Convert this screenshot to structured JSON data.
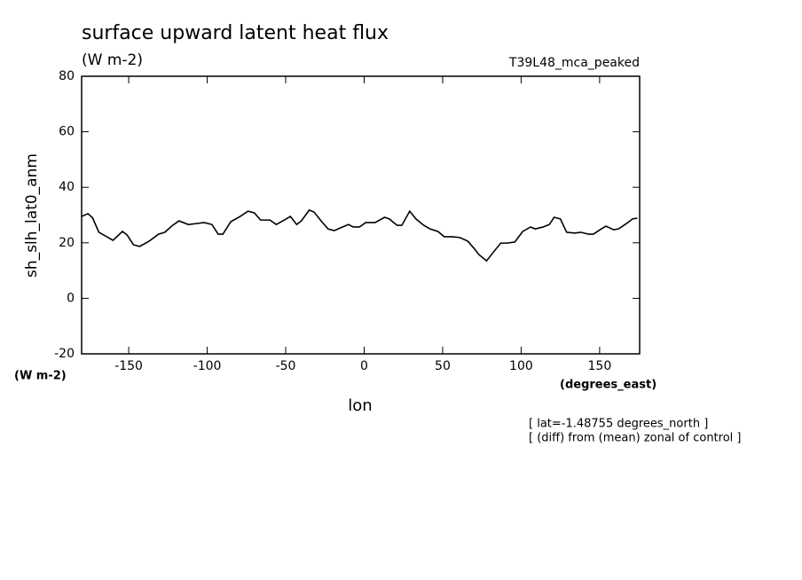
{
  "chart_data": {
    "type": "line",
    "title": "surface upward latent heat flux",
    "subtitle": "(W m-2)",
    "dataset": "T39L48_mca_peaked",
    "y_label": "sh_slh_lat0_anm",
    "y_units": "(W m-2)",
    "x_label": "lon",
    "x_units": "(degrees_east)",
    "notes": [
      "[ lat=-1.48755 degrees_north ]",
      "[ (diff) from (mean) zonal of control ]"
    ],
    "color": "#000000",
    "x": [
      -180,
      -176,
      -173,
      -169,
      -164,
      -160,
      -154,
      -151,
      -147,
      -143,
      -137,
      -131,
      -127,
      -122,
      -118,
      -112,
      -106,
      -102,
      -97,
      -93,
      -90,
      -85,
      -79,
      -74,
      -70,
      -66,
      -60,
      -56,
      -51,
      -47,
      -43,
      -40,
      -35,
      -32,
      -27,
      -23,
      -19,
      -15,
      -10,
      -7,
      -3,
      1,
      7,
      13,
      16,
      21,
      24,
      29,
      33,
      38,
      42,
      47,
      51,
      56,
      61,
      66,
      70,
      73,
      78,
      82,
      87,
      91,
      96,
      101,
      106,
      109,
      114,
      118,
      121,
      125,
      129,
      134,
      138,
      143,
      146,
      151,
      154,
      159,
      162,
      167,
      171,
      174
    ],
    "values": [
      29.5,
      30.5,
      29,
      23.8,
      22.2,
      20.9,
      24.1,
      22.8,
      19.3,
      18.7,
      20.6,
      23.1,
      23.8,
      26.3,
      27.9,
      26.6,
      27,
      27.3,
      26.6,
      23.1,
      23.1,
      27.6,
      29.5,
      31.4,
      30.8,
      28.2,
      28.2,
      26.6,
      28.2,
      29.5,
      26.6,
      27.9,
      31.8,
      31.1,
      27.6,
      25,
      24.4,
      25.4,
      26.6,
      25.7,
      25.7,
      27.3,
      27.3,
      29.2,
      28.6,
      26.3,
      26.3,
      31.4,
      28.6,
      26.3,
      25,
      24.1,
      22.2,
      22.2,
      21.9,
      20.6,
      18,
      15.8,
      13.5,
      16.4,
      19.9,
      19.9,
      20.3,
      24.1,
      25.7,
      25,
      25.7,
      26.6,
      29.2,
      28.6,
      23.8,
      23.5,
      23.8,
      23.1,
      23.1,
      25,
      26,
      24.7,
      25,
      26.9,
      28.6,
      28.9
    ],
    "xlim": [
      -180,
      175.5
    ],
    "xticks": [
      -150,
      -100,
      -50,
      0,
      50,
      100,
      150
    ],
    "ylim": [
      -20,
      80
    ],
    "yticks": [
      -20,
      0,
      20,
      40,
      60,
      80
    ]
  }
}
